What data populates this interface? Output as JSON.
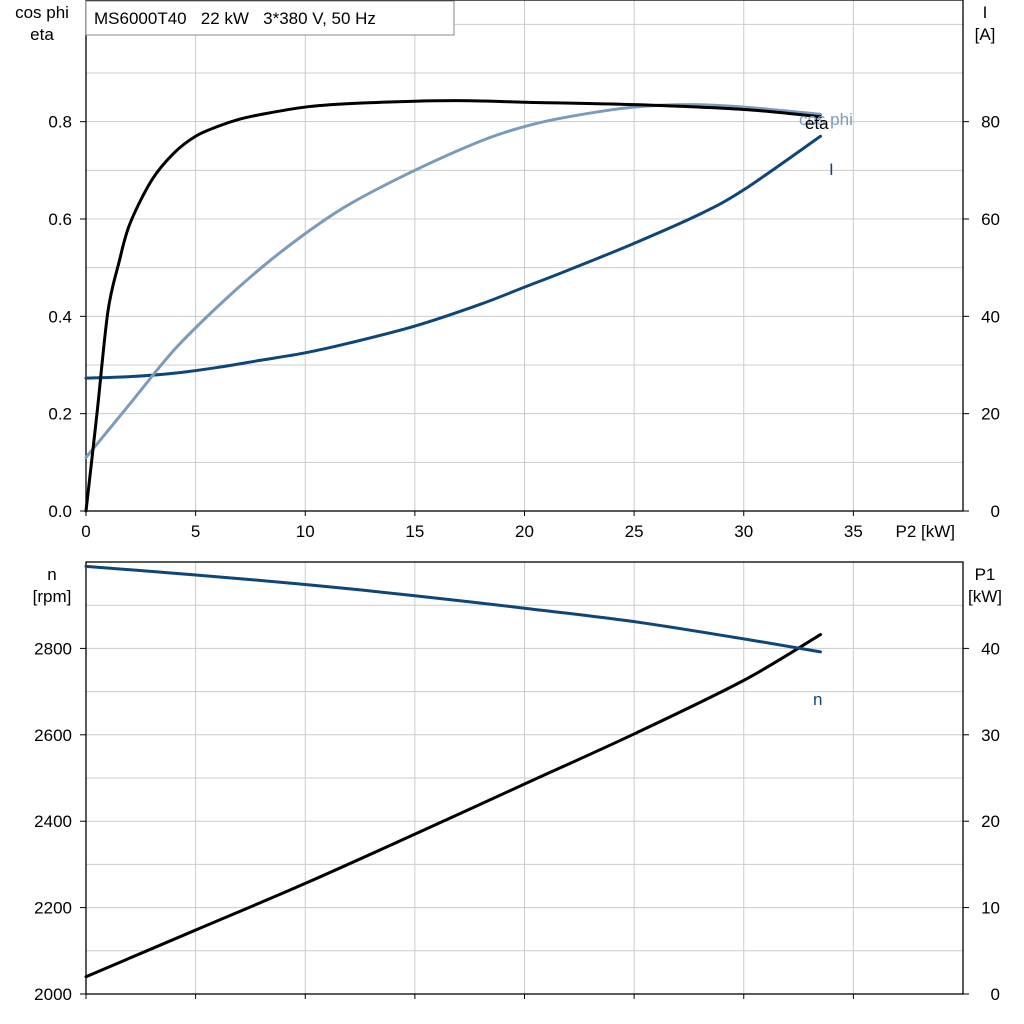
{
  "header": {
    "title": "MS6000T40   22 kW   3*380 V, 50 Hz"
  },
  "colors": {
    "eta": "#000000",
    "cos_phi": "#7a9bbb",
    "current": "#0f4678",
    "speed": "#0f4678",
    "p1": "#000000",
    "grid": "#cccccc"
  },
  "chart_data": [
    {
      "type": "line",
      "xlabel": "P2 [kW]",
      "ylabel_left": [
        "cos phi",
        "eta"
      ],
      "ylabel_right": [
        "I",
        "[A]"
      ],
      "xlim": [
        0,
        40
      ],
      "ylim_left": [
        0,
        1.05
      ],
      "ylim_right": [
        0,
        105
      ],
      "x_ticks": [
        0,
        5,
        10,
        15,
        20,
        25,
        30,
        35
      ],
      "y_ticks_left": [
        0.0,
        0.2,
        0.4,
        0.6,
        0.8
      ],
      "y_tick_labels_left": [
        "0.0",
        "0.2",
        "0.4",
        "0.6",
        "0.8"
      ],
      "y_ticks_right": [
        0,
        20,
        40,
        60,
        80
      ],
      "grid": true,
      "series": [
        {
          "name": "eta",
          "axis": "left",
          "x": [
            0,
            0.5,
            1,
            1.5,
            2,
            3,
            4,
            5,
            6,
            7,
            8,
            10,
            12,
            15,
            17.5,
            20,
            25,
            30,
            33.5
          ],
          "values": [
            0.0,
            0.2,
            0.41,
            0.51,
            0.59,
            0.68,
            0.735,
            0.77,
            0.79,
            0.805,
            0.815,
            0.83,
            0.837,
            0.842,
            0.843,
            0.84,
            0.835,
            0.825,
            0.81
          ]
        },
        {
          "name": "cos phi",
          "axis": "left",
          "x": [
            0,
            2,
            4,
            6,
            8,
            10,
            12,
            15,
            18,
            20,
            22,
            25,
            27.5,
            30,
            33.5
          ],
          "values": [
            0.11,
            0.22,
            0.33,
            0.42,
            0.5,
            0.57,
            0.63,
            0.7,
            0.76,
            0.79,
            0.81,
            0.83,
            0.835,
            0.83,
            0.815
          ]
        },
        {
          "name": "I",
          "axis": "right",
          "x": [
            0,
            2,
            4,
            6,
            8,
            10,
            12,
            15,
            18,
            20,
            22,
            25,
            28,
            30,
            33.5
          ],
          "values": [
            27.3,
            27.6,
            28.3,
            29.5,
            31,
            32.5,
            34.5,
            38,
            42.5,
            46,
            49.5,
            55,
            61,
            66,
            77
          ]
        }
      ]
    },
    {
      "type": "line",
      "xlabel": "",
      "ylabel_left": [
        "n",
        "[rpm]"
      ],
      "ylabel_right": [
        "P1",
        "[kW]"
      ],
      "xlim": [
        0,
        40
      ],
      "ylim_left": [
        2000,
        3000
      ],
      "ylim_right": [
        0,
        50
      ],
      "x_ticks": [
        0,
        5,
        10,
        15,
        20,
        25,
        30,
        35
      ],
      "y_ticks_left": [
        2000,
        2200,
        2400,
        2600,
        2800
      ],
      "y_ticks_right": [
        0,
        10,
        20,
        30,
        40
      ],
      "grid": true,
      "series": [
        {
          "name": "n",
          "axis": "left",
          "x": [
            0,
            5,
            10,
            15,
            20,
            25,
            30,
            33.5
          ],
          "values": [
            2990,
            2970,
            2948,
            2922,
            2893,
            2862,
            2822,
            2792
          ]
        },
        {
          "name": "",
          "axis": "right",
          "x": [
            0,
            5,
            10,
            15,
            20,
            25,
            30,
            33.5
          ],
          "values": [
            2,
            7.4,
            12.8,
            18.5,
            24.3,
            30.1,
            36.3,
            41.6
          ]
        }
      ]
    }
  ]
}
